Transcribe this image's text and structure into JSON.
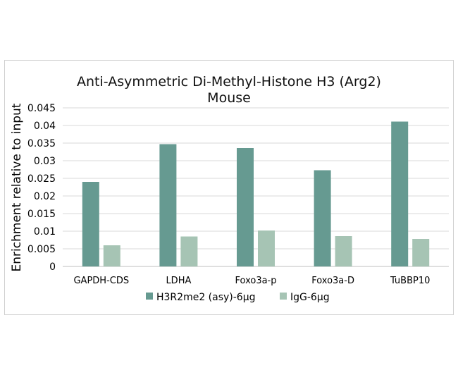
{
  "chart_data": {
    "type": "bar",
    "title_lines": [
      "Anti-Asymmetric Di-Methyl-Histone H3 (Arg2)",
      "Mouse"
    ],
    "ylabel": "Enrichment relative to input",
    "xlabel": "",
    "ylim": [
      0,
      0.045
    ],
    "yticks": [
      "0",
      "0.005",
      "0.01",
      "0.015",
      "0.02",
      "0.025",
      "0.03",
      "0.035",
      "0.04",
      "0.045"
    ],
    "ytick_values": [
      0,
      0.005,
      0.01,
      0.015,
      0.02,
      0.025,
      0.03,
      0.035,
      0.04,
      0.045
    ],
    "grid": true,
    "legend_position": "bottom",
    "categories": [
      "GAPDH-CDS",
      "LDHA",
      "Foxo3a-p",
      "Foxo3a-D",
      "TuBBP10"
    ],
    "series": [
      {
        "name": "H3R2me2 (asy)-6μg",
        "color": "#669a91",
        "values": [
          0.024,
          0.0347,
          0.0336,
          0.0273,
          0.0411
        ]
      },
      {
        "name": "IgG-6μg",
        "color": "#a6c4b4",
        "values": [
          0.006,
          0.0085,
          0.0102,
          0.0086,
          0.0078
        ]
      }
    ]
  }
}
